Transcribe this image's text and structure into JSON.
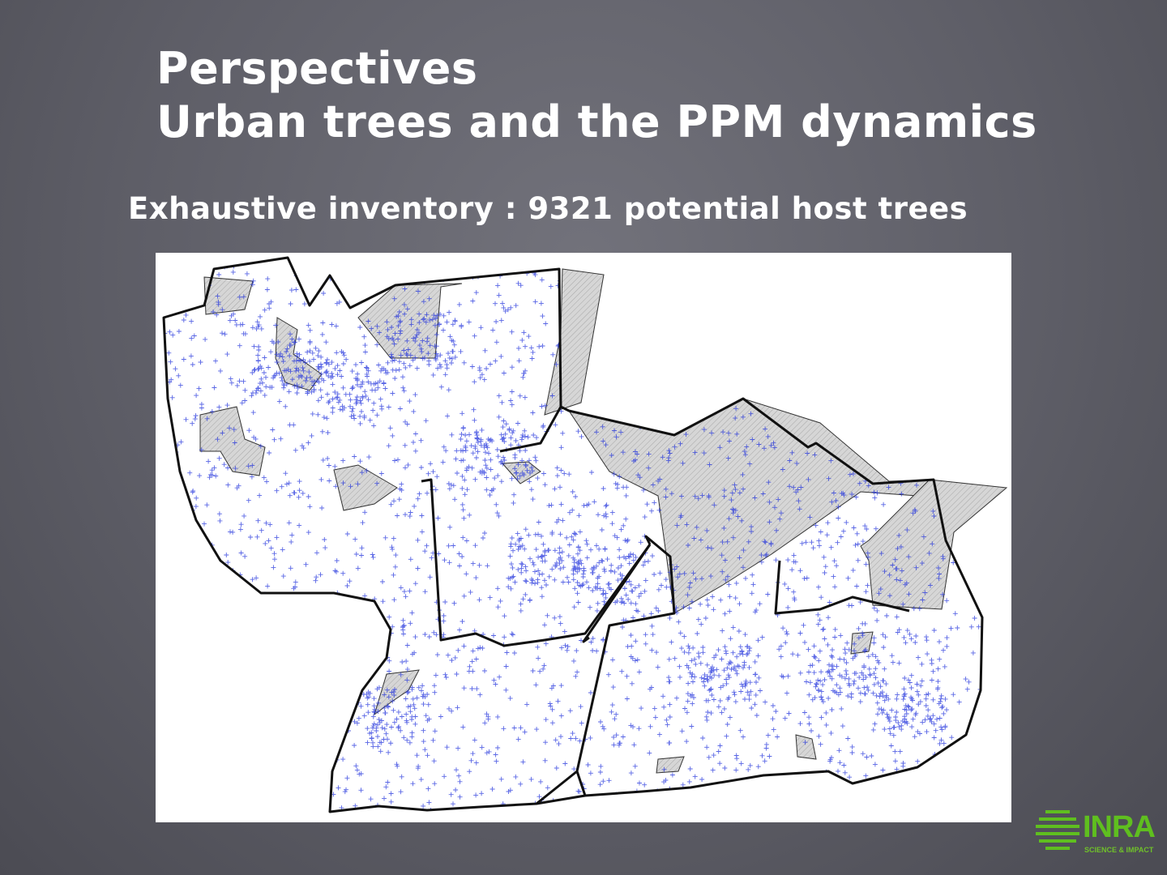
{
  "slide": {
    "title_line1": "Perspectives",
    "title_line2": "Urban trees and the PPM dynamics",
    "subtitle": "Exhaustive inventory : 9321 potential host trees"
  },
  "map": {
    "tree_count": 9321,
    "colors": {
      "trees": "#2233dd",
      "boundary": "#111111",
      "excluded_area_fill": "#d4d4d4",
      "background": "#ffffff"
    },
    "legend": "none"
  },
  "logo": {
    "text": "INRA",
    "tagline": "SCIENCE & IMPACT",
    "color": "#5fbf1f",
    "icon": "inra-globe-icon"
  }
}
